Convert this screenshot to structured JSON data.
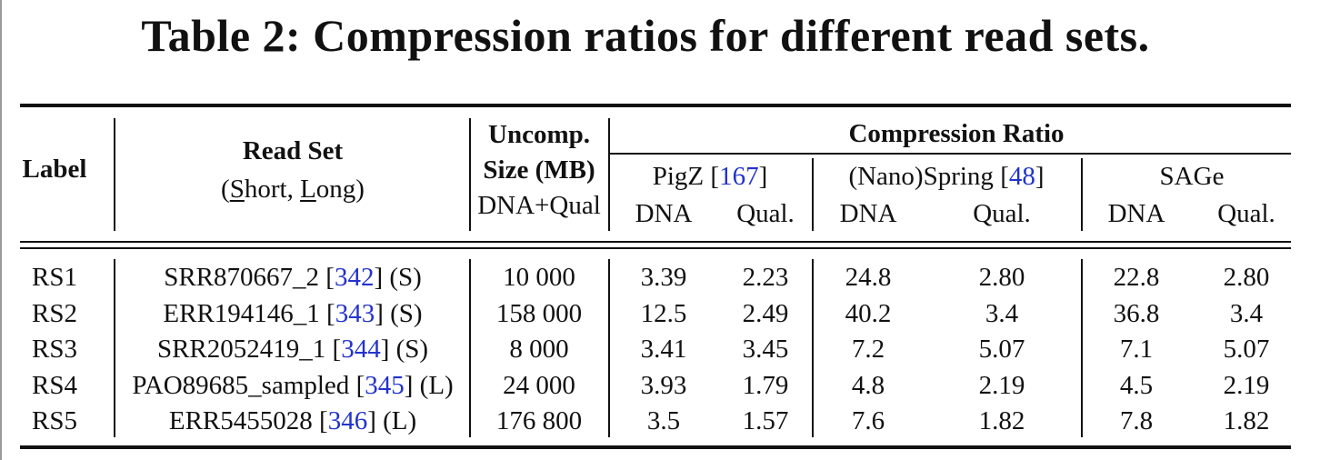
{
  "caption": "Table 2: Compression ratios for different read sets.",
  "header": {
    "label": "Label",
    "read_set": "Read Set",
    "read_set_sub": {
      "open": "(",
      "short_first": "S",
      "short_rest": "hort, ",
      "long_first": "L",
      "long_rest": "ong)"
    },
    "uncomp_line1": "Uncomp.",
    "uncomp_line2": "Size (MB)",
    "uncomp_line3": "DNA+Qual",
    "compression_ratio": "Compression Ratio",
    "tools": [
      {
        "name": "PigZ ",
        "cite_open": "[",
        "cite": "167",
        "cite_close": "]"
      },
      {
        "name": "(Nano)Spring ",
        "cite_open": "[",
        "cite": "48",
        "cite_close": "]"
      },
      {
        "name": "SAGe",
        "cite_open": "",
        "cite": "",
        "cite_close": ""
      }
    ],
    "dna": "DNA",
    "qual": "Qual."
  },
  "rows": [
    {
      "label": "RS1",
      "name": "SRR870667_2 ",
      "cite": "342",
      "type": " (S)",
      "size": "10 000",
      "pigz_dna": "3.39",
      "pigz_qual": "2.23",
      "spring_dna": "24.8",
      "spring_qual": "2.80",
      "sage_dna": "22.8",
      "sage_qual": "2.80"
    },
    {
      "label": "RS2",
      "name": "ERR194146_1 ",
      "cite": "343",
      "type": " (S)",
      "size": "158 000",
      "pigz_dna": "12.5",
      "pigz_qual": "2.49",
      "spring_dna": "40.2",
      "spring_qual": "3.4",
      "sage_dna": "36.8",
      "sage_qual": "3.4"
    },
    {
      "label": "RS3",
      "name": "SRR2052419_1 ",
      "cite": "344",
      "type": " (S)",
      "size": "8 000",
      "pigz_dna": "3.41",
      "pigz_qual": "3.45",
      "spring_dna": "7.2",
      "spring_qual": "5.07",
      "sage_dna": "7.1",
      "sage_qual": "5.07"
    },
    {
      "label": "RS4",
      "name": "PAO89685_sampled ",
      "cite": "345",
      "type": " (L)",
      "size": "24 000",
      "pigz_dna": "3.93",
      "pigz_qual": "1.79",
      "spring_dna": "4.8",
      "spring_qual": "2.19",
      "sage_dna": "4.5",
      "sage_qual": "2.19"
    },
    {
      "label": "RS5",
      "name": "ERR5455028 ",
      "cite": "346",
      "type": " (L)",
      "size": "176 800",
      "pigz_dna": "3.5",
      "pigz_qual": "1.57",
      "spring_dna": "7.6",
      "spring_qual": "1.82",
      "sage_dna": "7.8",
      "sage_qual": "1.82"
    }
  ]
}
